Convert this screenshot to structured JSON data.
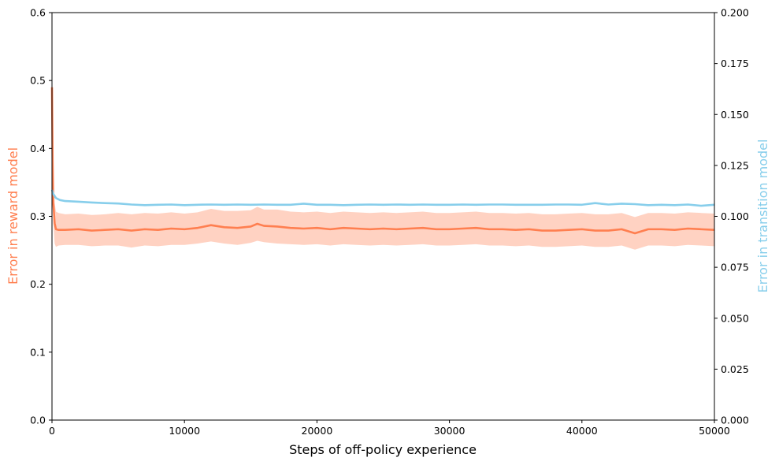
{
  "chart_data": {
    "type": "line",
    "xlabel": "Steps of off-policy experience",
    "ylabel_left": "Error in reward model",
    "ylabel_right": "Error in transition model",
    "xlim": [
      0,
      50000
    ],
    "ylim_left": [
      0,
      0.6
    ],
    "ylim_right": [
      0,
      0.2
    ],
    "x_ticks": [
      "0",
      "10000",
      "20000",
      "30000",
      "40000",
      "50000"
    ],
    "y_ticks_left": [
      "0.0",
      "0.1",
      "0.2",
      "0.3",
      "0.4",
      "0.5",
      "0.6"
    ],
    "y_ticks_right": [
      "0.000",
      "0.025",
      "0.050",
      "0.075",
      "0.100",
      "0.125",
      "0.150",
      "0.175",
      "0.200"
    ],
    "grid": false,
    "colors": {
      "reward_line": "#ff7f50",
      "reward_band": "#ffc3ad",
      "transition_line": "#87ceeb",
      "left_label": "#ff7f50",
      "right_label": "#87ceeb"
    },
    "series": [
      {
        "axis": "left",
        "x": [
          0,
          50,
          100,
          200,
          300,
          500,
          1000,
          2000,
          3000,
          4000,
          5000,
          6000,
          7000,
          8000,
          9000,
          10000,
          11000,
          12000,
          13000,
          14000,
          15000,
          15500,
          16000,
          17000,
          18000,
          19000,
          20000,
          21000,
          22000,
          23000,
          24000,
          25000,
          26000,
          27000,
          28000,
          29000,
          30000,
          31000,
          32000,
          33000,
          34000,
          35000,
          36000,
          37000,
          38000,
          39000,
          40000,
          41000,
          42000,
          43000,
          44000,
          45000,
          46000,
          47000,
          48000,
          49000,
          50000
        ],
        "y": [
          0.49,
          0.38,
          0.32,
          0.29,
          0.281,
          0.28,
          0.28,
          0.281,
          0.279,
          0.28,
          0.281,
          0.279,
          0.281,
          0.28,
          0.282,
          0.281,
          0.283,
          0.287,
          0.284,
          0.283,
          0.285,
          0.289,
          0.286,
          0.285,
          0.283,
          0.282,
          0.283,
          0.281,
          0.283,
          0.282,
          0.281,
          0.282,
          0.281,
          0.282,
          0.283,
          0.281,
          0.281,
          0.282,
          0.283,
          0.281,
          0.281,
          0.28,
          0.281,
          0.279,
          0.279,
          0.28,
          0.281,
          0.279,
          0.279,
          0.281,
          0.275,
          0.281,
          0.281,
          0.28,
          0.282,
          0.281,
          0.28
        ],
        "lower": [
          0.47,
          0.35,
          0.29,
          0.26,
          0.255,
          0.257,
          0.258,
          0.258,
          0.256,
          0.257,
          0.257,
          0.254,
          0.257,
          0.256,
          0.258,
          0.258,
          0.26,
          0.263,
          0.26,
          0.258,
          0.261,
          0.264,
          0.262,
          0.26,
          0.259,
          0.258,
          0.259,
          0.257,
          0.259,
          0.258,
          0.257,
          0.258,
          0.257,
          0.258,
          0.259,
          0.257,
          0.257,
          0.258,
          0.259,
          0.257,
          0.257,
          0.256,
          0.257,
          0.255,
          0.255,
          0.256,
          0.257,
          0.255,
          0.255,
          0.257,
          0.251,
          0.257,
          0.257,
          0.256,
          0.258,
          0.257,
          0.256
        ],
        "upper": [
          0.51,
          0.41,
          0.35,
          0.32,
          0.307,
          0.305,
          0.303,
          0.304,
          0.302,
          0.303,
          0.305,
          0.303,
          0.305,
          0.304,
          0.306,
          0.304,
          0.306,
          0.311,
          0.308,
          0.308,
          0.309,
          0.314,
          0.31,
          0.31,
          0.307,
          0.306,
          0.307,
          0.305,
          0.307,
          0.306,
          0.305,
          0.306,
          0.305,
          0.306,
          0.307,
          0.305,
          0.305,
          0.306,
          0.307,
          0.305,
          0.305,
          0.304,
          0.305,
          0.303,
          0.303,
          0.304,
          0.305,
          0.303,
          0.303,
          0.305,
          0.299,
          0.305,
          0.305,
          0.304,
          0.306,
          0.305,
          0.304
        ]
      },
      {
        "axis": "right",
        "x": [
          0,
          100,
          300,
          600,
          1000,
          2000,
          3000,
          4000,
          5000,
          6000,
          7000,
          8000,
          9000,
          10000,
          11000,
          12000,
          13000,
          14000,
          15000,
          16000,
          17000,
          18000,
          19000,
          20000,
          21000,
          22000,
          23000,
          24000,
          25000,
          26000,
          27000,
          28000,
          29000,
          30000,
          31000,
          32000,
          33000,
          34000,
          35000,
          36000,
          37000,
          38000,
          39000,
          40000,
          41000,
          42000,
          43000,
          44000,
          45000,
          46000,
          47000,
          48000,
          49000,
          50000
        ],
        "y": [
          0.113,
          0.111,
          0.109,
          0.108,
          0.1075,
          0.1072,
          0.1068,
          0.1065,
          0.1063,
          0.1058,
          0.1055,
          0.1057,
          0.1058,
          0.1055,
          0.1057,
          0.1058,
          0.1057,
          0.1058,
          0.1057,
          0.1058,
          0.1057,
          0.1057,
          0.1062,
          0.1057,
          0.1057,
          0.1055,
          0.1057,
          0.1058,
          0.1057,
          0.1058,
          0.1057,
          0.1058,
          0.1057,
          0.1057,
          0.1058,
          0.1057,
          0.1058,
          0.1058,
          0.1057,
          0.1057,
          0.1057,
          0.1058,
          0.1058,
          0.1057,
          0.1065,
          0.1058,
          0.1062,
          0.106,
          0.1055,
          0.1057,
          0.1055,
          0.1058,
          0.1052,
          0.1057
        ]
      }
    ]
  }
}
